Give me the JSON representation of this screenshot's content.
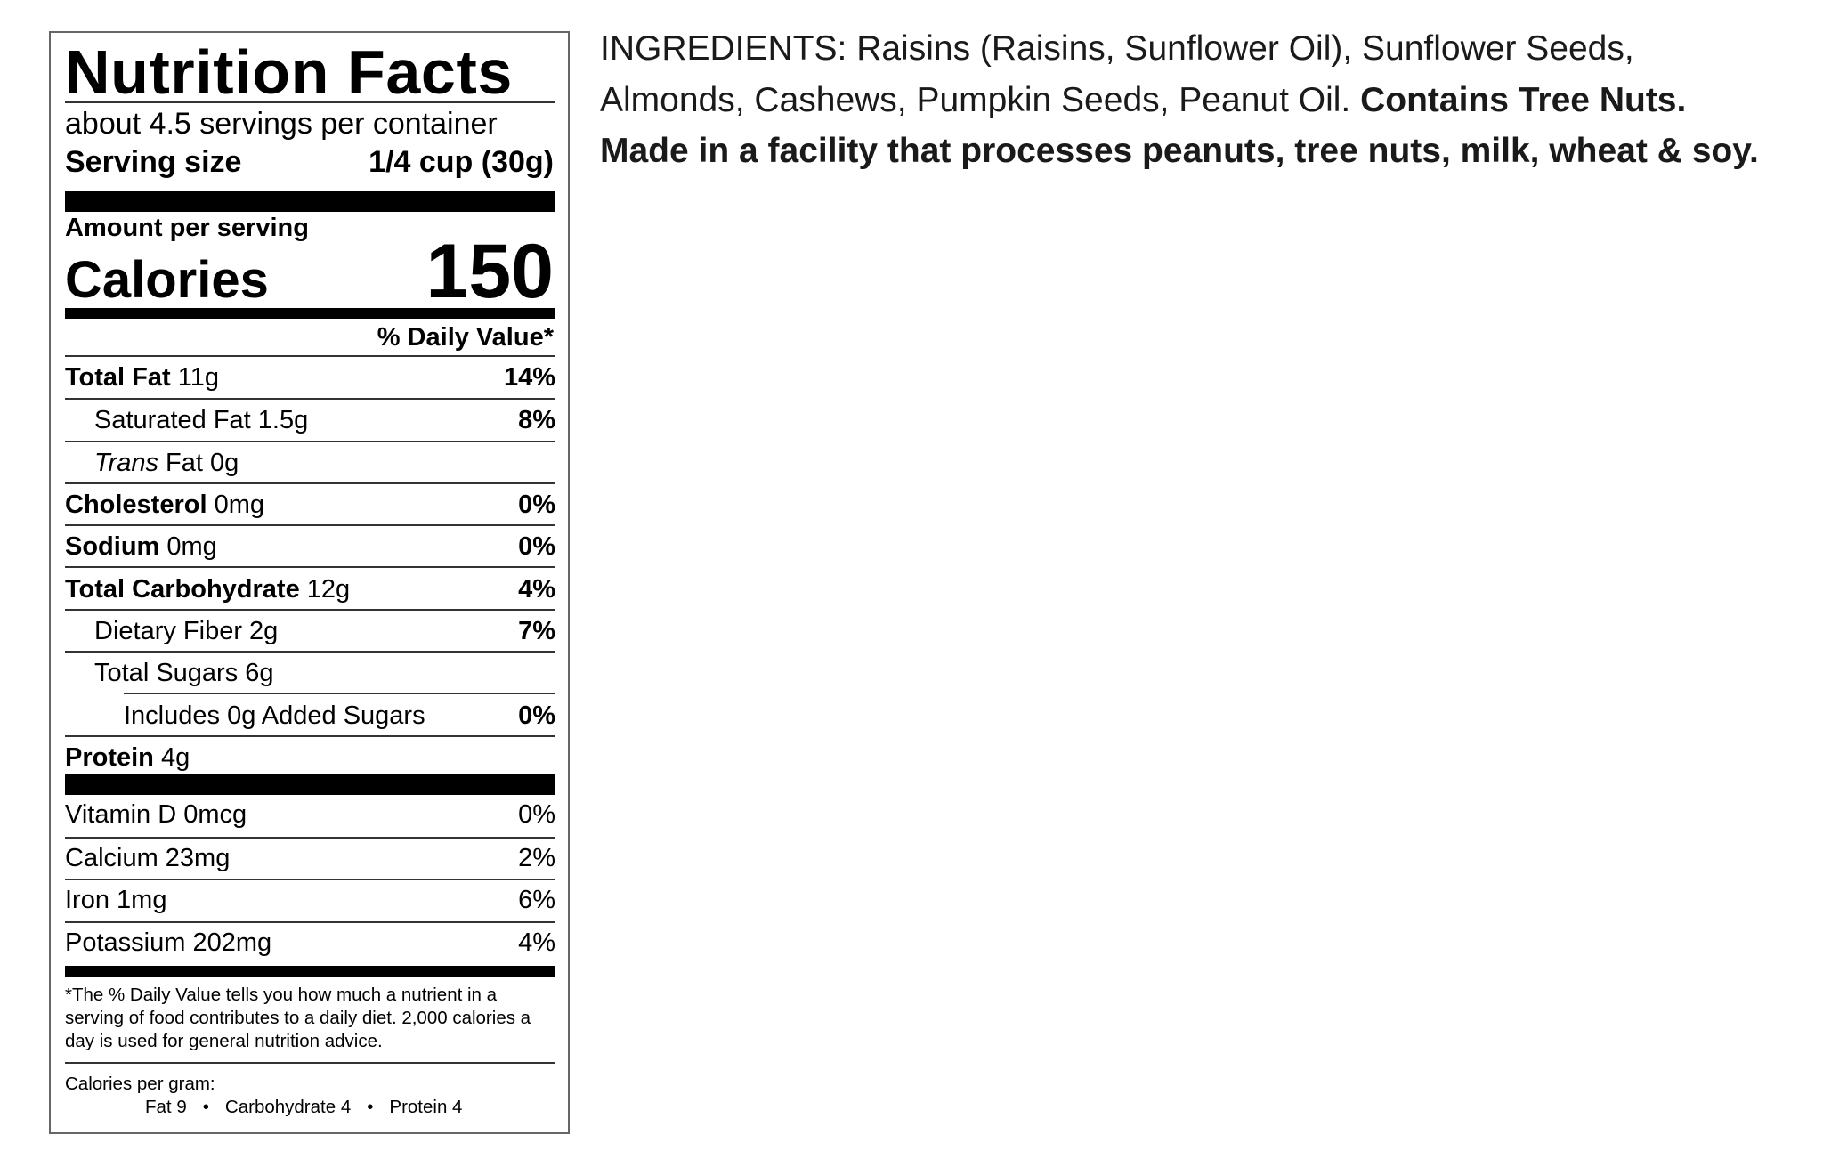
{
  "nutrition": {
    "title": "Nutrition Facts",
    "servings_per_container": "about 4.5 servings per container",
    "serving_size_label": "Serving size",
    "serving_size_value": "1/4 cup (30g)",
    "amount_per_serving": "Amount per serving",
    "calories_label": "Calories",
    "calories_value": "150",
    "daily_value_header": "% Daily Value*",
    "rows": [
      {
        "bold": "Total Fat",
        "italic": "",
        "amount": " 11g",
        "pct": "14%",
        "indent": 0
      },
      {
        "bold": "",
        "italic": "",
        "amount": "Saturated Fat 1.5g",
        "pct": "8%",
        "indent": 1
      },
      {
        "bold": "",
        "italic": "Trans",
        "amount": " Fat 0g",
        "pct": "",
        "indent": 1
      },
      {
        "bold": "Cholesterol",
        "italic": "",
        "amount": " 0mg",
        "pct": "0%",
        "indent": 0
      },
      {
        "bold": "Sodium",
        "italic": "",
        "amount": " 0mg",
        "pct": "0%",
        "indent": 0
      },
      {
        "bold": "Total Carbohydrate",
        "italic": "",
        "amount": " 12g",
        "pct": "4%",
        "indent": 0
      },
      {
        "bold": "",
        "italic": "",
        "amount": "Dietary Fiber 2g",
        "pct": "7%",
        "indent": 1
      },
      {
        "bold": "",
        "italic": "",
        "amount": "Total Sugars 6g",
        "pct": "",
        "indent": 1
      },
      {
        "bold": "",
        "italic": "",
        "amount": "Includes 0g Added Sugars",
        "pct": "0%",
        "indent": 2
      },
      {
        "bold": "Protein",
        "italic": "",
        "amount": " 4g",
        "pct": "",
        "indent": 0
      }
    ],
    "vitamins": [
      {
        "name": "Vitamin D 0mcg",
        "pct": "0%"
      },
      {
        "name": "Calcium 23mg",
        "pct": "2%"
      },
      {
        "name": "Iron 1mg",
        "pct": "6%"
      },
      {
        "name": "Potassium 202mg",
        "pct": "4%"
      }
    ],
    "footnote": "*The % Daily Value tells you how much a nutrient in a serving of food contributes to a daily diet. 2,000 calories a day is used for general nutrition advice.",
    "calories_per_gram_label": "Calories per gram:",
    "calories_per_gram": [
      "Fat 9",
      "Carbohydrate 4",
      "Protein 4"
    ],
    "separator": "•"
  },
  "ingredients": {
    "line1": "INGREDIENTS: Raisins (Raisins, Sunflower Oil), Sunflower Seeds,",
    "line2": "Almonds, Cashews, Pumpkin Seeds, Peanut Oil. ",
    "allergen": "Contains Tree Nuts.",
    "facility": "Made in a facility that processes peanuts, tree nuts, milk, wheat & soy."
  }
}
